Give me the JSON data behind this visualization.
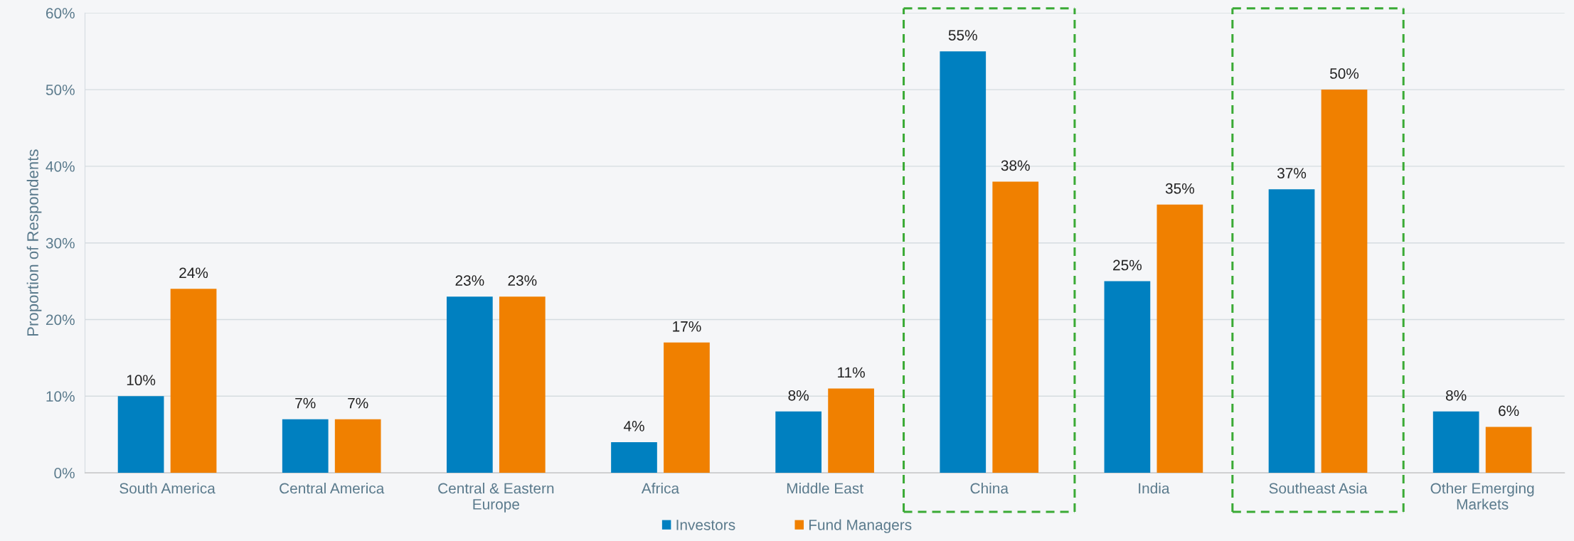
{
  "chart_data": {
    "type": "bar",
    "ylabel": "Proportion of Respondents",
    "categories": [
      "South America",
      "Central America",
      "Central & Eastern\nEurope",
      "Africa",
      "Middle East",
      "China",
      "India",
      "Southeast Asia",
      "Other Emerging\nMarkets"
    ],
    "series": [
      {
        "name": "Investors",
        "color": "#0080c0",
        "values": [
          10,
          7,
          23,
          4,
          8,
          55,
          25,
          37,
          8
        ],
        "value_labels": [
          "10%",
          "7%",
          "23%",
          "4%",
          "8%",
          "55%",
          "25%",
          "37%",
          "8%"
        ]
      },
      {
        "name": "Fund Managers",
        "color": "#f08000",
        "values": [
          24,
          7,
          23,
          17,
          11,
          38,
          35,
          50,
          6
        ],
        "value_labels": [
          "24%",
          "7%",
          "23%",
          "17%",
          "11%",
          "38%",
          "35%",
          "50%",
          "6%"
        ]
      }
    ],
    "ylim": [
      0,
      60
    ],
    "yticks": [
      {
        "value": 0,
        "label": "0%"
      },
      {
        "value": 10,
        "label": "10%"
      },
      {
        "value": 20,
        "label": "20%"
      },
      {
        "value": 30,
        "label": "30%"
      },
      {
        "value": 40,
        "label": "40%"
      },
      {
        "value": 50,
        "label": "50%"
      },
      {
        "value": 60,
        "label": "60%"
      }
    ],
    "grid": "y",
    "legend": "bottom"
  }
}
